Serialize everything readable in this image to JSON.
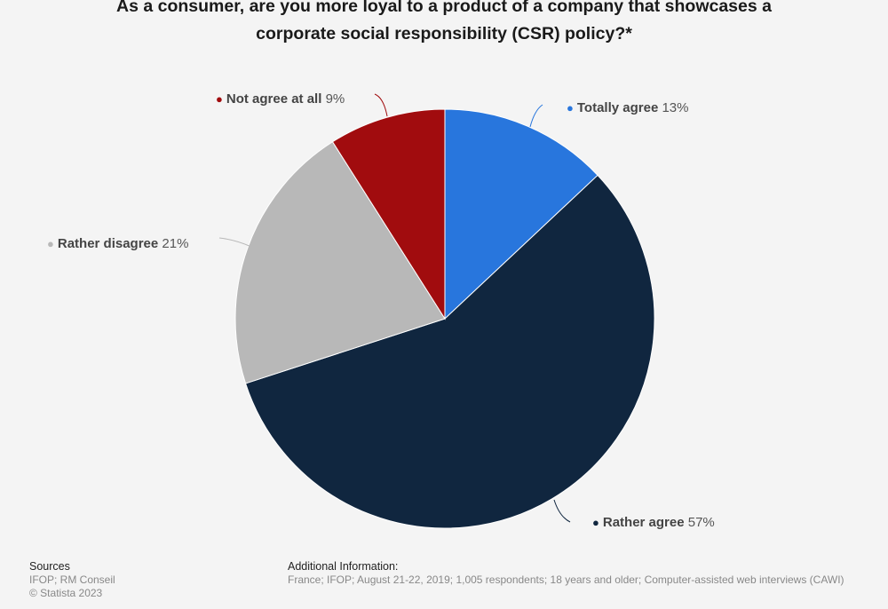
{
  "chart_data": {
    "type": "pie",
    "title_lines": [
      "As a consumer, are you more loyal to a product of a company that showcases a",
      "corporate social responsibility (CSR) policy?*"
    ],
    "slices": [
      {
        "label": "Totally agree",
        "value": 13,
        "display": "13%",
        "color": "#2876dd"
      },
      {
        "label": "Rather agree",
        "value": 57,
        "display": "57%",
        "color": "#10263f"
      },
      {
        "label": "Rather disagree",
        "value": 21,
        "display": "21%",
        "color": "#b8b8b8"
      },
      {
        "label": "Not agree at all",
        "value": 9,
        "display": "9%",
        "color": "#a10c0e"
      }
    ]
  },
  "footer": {
    "sources_heading": "Sources",
    "sources": "IFOP; RM Conseil",
    "copyright": "© Statista 2023",
    "additional_heading": "Additional Information:",
    "additional": "France; IFOP; August 21-22, 2019; 1,005 respondents; 18 years and older; Computer-assisted web interviews (CAWI)"
  }
}
